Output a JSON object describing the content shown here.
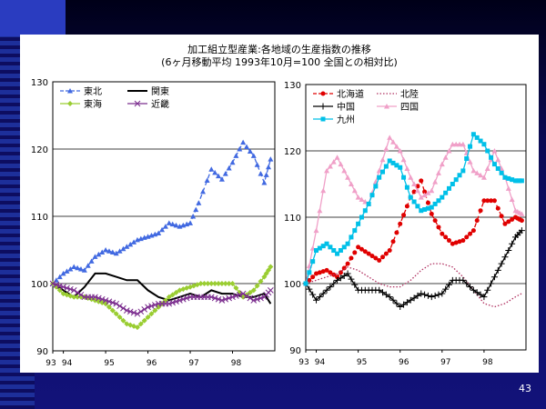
{
  "page": {
    "title_line1": "加工組立型産業:各地域の生産指数の推移",
    "title_line2": "(6ヶ月移動平均 1993年10月=100 全国との相対比)",
    "page_number": "43"
  },
  "chart_data": [
    {
      "type": "line",
      "ylim": [
        90,
        130
      ],
      "yticks": [
        "90",
        "100",
        "110",
        "120",
        "130"
      ],
      "xlim": [
        1993.75,
        1999.0
      ],
      "xticks": [
        {
          "x": 1993.75,
          "label": "93"
        },
        {
          "x": 1994.0,
          "label": "94"
        },
        {
          "x": 1995.0,
          "label": "95"
        },
        {
          "x": 1996.0,
          "label": "96"
        },
        {
          "x": 1997.0,
          "label": "97"
        },
        {
          "x": 1998.0,
          "label": "98"
        }
      ],
      "grid": "horizontal",
      "legend_position": "top-left",
      "series": [
        {
          "name": "東北",
          "color": "#4169e1",
          "marker": "triangle",
          "dash": "dashed",
          "points": [
            [
              1993.75,
              100
            ],
            [
              1994.0,
              101.5
            ],
            [
              1994.25,
              102.5
            ],
            [
              1994.5,
              102
            ],
            [
              1994.75,
              104
            ],
            [
              1995.0,
              105
            ],
            [
              1995.25,
              104.5
            ],
            [
              1995.5,
              105.5
            ],
            [
              1995.75,
              106.5
            ],
            [
              1996.0,
              107
            ],
            [
              1996.25,
              107.5
            ],
            [
              1996.5,
              109
            ],
            [
              1996.75,
              108.5
            ],
            [
              1997.0,
              109
            ],
            [
              1997.2,
              112
            ],
            [
              1997.5,
              117
            ],
            [
              1997.75,
              115.5
            ],
            [
              1998.0,
              118
            ],
            [
              1998.25,
              121
            ],
            [
              1998.5,
              119
            ],
            [
              1998.75,
              115
            ],
            [
              1998.9,
              118.5
            ]
          ]
        },
        {
          "name": "関東",
          "color": "#000000",
          "marker": "none",
          "dash": "solid",
          "points": [
            [
              1993.75,
              100
            ],
            [
              1994.0,
              99
            ],
            [
              1994.25,
              98
            ],
            [
              1994.5,
              99.5
            ],
            [
              1994.75,
              101.5
            ],
            [
              1995.0,
              101.5
            ],
            [
              1995.25,
              101
            ],
            [
              1995.5,
              100.5
            ],
            [
              1995.75,
              100.5
            ],
            [
              1996.0,
              99
            ],
            [
              1996.25,
              98
            ],
            [
              1996.5,
              97.5
            ],
            [
              1996.75,
              98
            ],
            [
              1997.0,
              98.5
            ],
            [
              1997.25,
              98
            ],
            [
              1997.5,
              99
            ],
            [
              1997.75,
              98.5
            ],
            [
              1998.0,
              98.5
            ],
            [
              1998.25,
              98
            ],
            [
              1998.5,
              98
            ],
            [
              1998.75,
              98.5
            ],
            [
              1998.9,
              97
            ]
          ]
        },
        {
          "name": "東海",
          "color": "#9acd32",
          "marker": "diamond",
          "dash": "solid",
          "points": [
            [
              1993.75,
              100
            ],
            [
              1994.0,
              98.5
            ],
            [
              1994.25,
              98
            ],
            [
              1994.5,
              98
            ],
            [
              1994.75,
              97.5
            ],
            [
              1995.0,
              97
            ],
            [
              1995.25,
              95.5
            ],
            [
              1995.5,
              94
            ],
            [
              1995.75,
              93.5
            ],
            [
              1996.0,
              95
            ],
            [
              1996.25,
              96.5
            ],
            [
              1996.5,
              98
            ],
            [
              1996.75,
              99
            ],
            [
              1997.0,
              99.5
            ],
            [
              1997.25,
              100
            ],
            [
              1997.5,
              100
            ],
            [
              1997.75,
              100
            ],
            [
              1998.0,
              100
            ],
            [
              1998.25,
              98
            ],
            [
              1998.5,
              99
            ],
            [
              1998.75,
              101
            ],
            [
              1998.9,
              102.5
            ]
          ]
        },
        {
          "name": "近畿",
          "color": "#7b2d8e",
          "marker": "x",
          "dash": "solid",
          "points": [
            [
              1993.75,
              100
            ],
            [
              1994.0,
              99.5
            ],
            [
              1994.25,
              99
            ],
            [
              1994.5,
              98
            ],
            [
              1994.75,
              98
            ],
            [
              1995.0,
              97.5
            ],
            [
              1995.25,
              97
            ],
            [
              1995.5,
              96
            ],
            [
              1995.75,
              95.5
            ],
            [
              1996.0,
              96.5
            ],
            [
              1996.25,
              97
            ],
            [
              1996.5,
              97
            ],
            [
              1996.75,
              97.5
            ],
            [
              1997.0,
              98
            ],
            [
              1997.25,
              98
            ],
            [
              1997.5,
              98
            ],
            [
              1997.75,
              97.5
            ],
            [
              1998.0,
              98
            ],
            [
              1998.25,
              98.5
            ],
            [
              1998.5,
              97.5
            ],
            [
              1998.75,
              98
            ],
            [
              1998.9,
              99
            ]
          ]
        }
      ]
    },
    {
      "type": "line",
      "ylim": [
        90,
        130
      ],
      "yticks": [
        "90",
        "100",
        "110",
        "120",
        "130"
      ],
      "xlim": [
        1993.75,
        1999.0
      ],
      "xticks": [
        {
          "x": 1993.75,
          "label": "93"
        },
        {
          "x": 1994.0,
          "label": "94"
        },
        {
          "x": 1995.0,
          "label": "95"
        },
        {
          "x": 1996.0,
          "label": "96"
        },
        {
          "x": 1997.0,
          "label": "97"
        },
        {
          "x": 1998.0,
          "label": "98"
        }
      ],
      "grid": "horizontal",
      "legend_position": "top-left",
      "series": [
        {
          "name": "北海道",
          "color": "#e00000",
          "marker": "circle",
          "dash": "dashed",
          "points": [
            [
              1993.75,
              100
            ],
            [
              1994.0,
              101.5
            ],
            [
              1994.25,
              102
            ],
            [
              1994.5,
              101
            ],
            [
              1994.75,
              103
            ],
            [
              1995.0,
              105.5
            ],
            [
              1995.25,
              104.5
            ],
            [
              1995.5,
              103.5
            ],
            [
              1995.75,
              105
            ],
            [
              1996.0,
              109
            ],
            [
              1996.25,
              113
            ],
            [
              1996.5,
              115.5
            ],
            [
              1996.75,
              110.5
            ],
            [
              1997.0,
              107.5
            ],
            [
              1997.25,
              106
            ],
            [
              1997.5,
              106.5
            ],
            [
              1997.75,
              108
            ],
            [
              1998.0,
              112.5
            ],
            [
              1998.25,
              112.5
            ],
            [
              1998.5,
              109
            ],
            [
              1998.75,
              110
            ],
            [
              1998.9,
              109.5
            ]
          ]
        },
        {
          "name": "北陸",
          "color": "#b03060",
          "marker": "none",
          "dash": "dotted",
          "points": [
            [
              1993.75,
              100
            ],
            [
              1994.0,
              100.5
            ],
            [
              1994.25,
              101
            ],
            [
              1994.5,
              101.5
            ],
            [
              1994.75,
              102.5
            ],
            [
              1995.0,
              102
            ],
            [
              1995.25,
              101
            ],
            [
              1995.5,
              100
            ],
            [
              1995.75,
              99.5
            ],
            [
              1996.0,
              99.5
            ],
            [
              1996.25,
              100.5
            ],
            [
              1996.5,
              102
            ],
            [
              1996.75,
              103
            ],
            [
              1997.0,
              103
            ],
            [
              1997.25,
              102.5
            ],
            [
              1997.5,
              101
            ],
            [
              1997.75,
              99
            ],
            [
              1998.0,
              97
            ],
            [
              1998.25,
              96.5
            ],
            [
              1998.5,
              97
            ],
            [
              1998.75,
              98
            ],
            [
              1998.9,
              98.5
            ]
          ]
        },
        {
          "name": "中国",
          "color": "#000000",
          "marker": "plus",
          "dash": "solid",
          "points": [
            [
              1993.75,
              100
            ],
            [
              1994.0,
              97.5
            ],
            [
              1994.25,
              99
            ],
            [
              1994.5,
              100.5
            ],
            [
              1994.75,
              101.5
            ],
            [
              1995.0,
              99
            ],
            [
              1995.25,
              99
            ],
            [
              1995.5,
              99
            ],
            [
              1995.75,
              98
            ],
            [
              1996.0,
              96.5
            ],
            [
              1996.25,
              97.5
            ],
            [
              1996.5,
              98.5
            ],
            [
              1996.75,
              98
            ],
            [
              1997.0,
              98.5
            ],
            [
              1997.25,
              100.5
            ],
            [
              1997.5,
              100.5
            ],
            [
              1997.75,
              99
            ],
            [
              1998.0,
              98
            ],
            [
              1998.25,
              101
            ],
            [
              1998.5,
              104
            ],
            [
              1998.75,
              107
            ],
            [
              1998.9,
              108
            ]
          ]
        },
        {
          "name": "四国",
          "color": "#f0a0c8",
          "marker": "triangle",
          "dash": "solid",
          "points": [
            [
              1993.75,
              100
            ],
            [
              1994.0,
              108
            ],
            [
              1994.25,
              117
            ],
            [
              1994.5,
              119
            ],
            [
              1994.75,
              116
            ],
            [
              1995.0,
              113
            ],
            [
              1995.25,
              112
            ],
            [
              1995.5,
              117
            ],
            [
              1995.75,
              122
            ],
            [
              1996.0,
              120
            ],
            [
              1996.25,
              116
            ],
            [
              1996.5,
              113
            ],
            [
              1996.75,
              114
            ],
            [
              1997.0,
              118
            ],
            [
              1997.25,
              121
            ],
            [
              1997.5,
              121
            ],
            [
              1997.75,
              117
            ],
            [
              1998.0,
              116
            ],
            [
              1998.25,
              120
            ],
            [
              1998.5,
              116
            ],
            [
              1998.75,
              111
            ],
            [
              1998.9,
              110.5
            ]
          ]
        },
        {
          "name": "九州",
          "color": "#00c0e8",
          "marker": "square",
          "dash": "solid",
          "points": [
            [
              1993.75,
              100
            ],
            [
              1994.0,
              105
            ],
            [
              1994.25,
              106
            ],
            [
              1994.5,
              104.5
            ],
            [
              1994.75,
              106
            ],
            [
              1995.0,
              109
            ],
            [
              1995.25,
              112
            ],
            [
              1995.5,
              116
            ],
            [
              1995.75,
              118.5
            ],
            [
              1996.0,
              117.5
            ],
            [
              1996.25,
              113
            ],
            [
              1996.5,
              111
            ],
            [
              1996.75,
              111.5
            ],
            [
              1997.0,
              113
            ],
            [
              1997.25,
              115
            ],
            [
              1997.5,
              117
            ],
            [
              1997.75,
              122.5
            ],
            [
              1998.0,
              121
            ],
            [
              1998.25,
              118
            ],
            [
              1998.5,
              116
            ],
            [
              1998.75,
              115.5
            ],
            [
              1998.9,
              115.5
            ]
          ]
        }
      ]
    }
  ]
}
